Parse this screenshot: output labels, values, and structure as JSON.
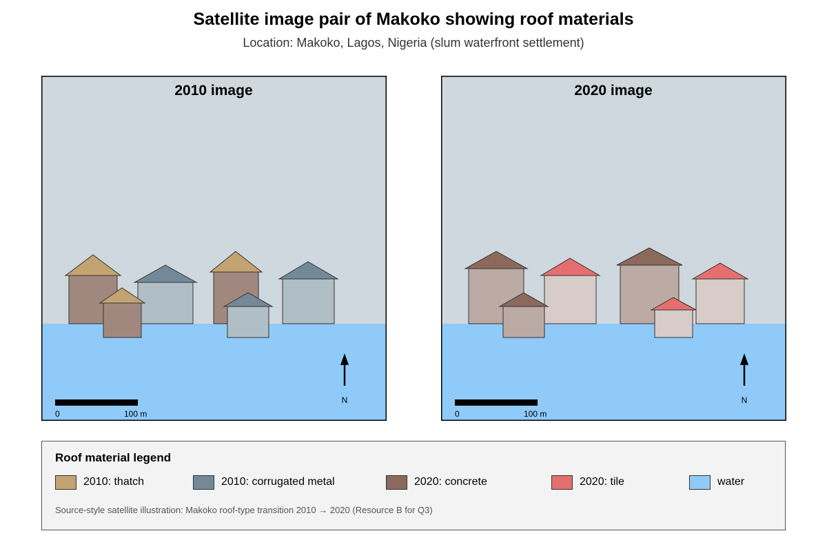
{
  "title": "Satellite image pair of Makoko showing roof materials",
  "subtitle": "Location: Makoko, Lagos, Nigeria (slum waterfront settlement)",
  "panels": [
    {
      "label": "2010 image",
      "scale_start": "0",
      "scale_end": "100 m",
      "north": "N"
    },
    {
      "label": "2020 image",
      "scale_start": "0",
      "scale_end": "100 m",
      "north": "N"
    }
  ],
  "legend": {
    "title": "Roof material legend",
    "items": [
      {
        "label": "2010: thatch",
        "color": "#c4a372"
      },
      {
        "label": "2010: corrugated metal",
        "color": "#738997"
      },
      {
        "label": "2020: concrete",
        "color": "#8b6a5d"
      },
      {
        "label": "2020: tile",
        "color": "#e56f6f"
      },
      {
        "label": "water",
        "color": "#90caf9"
      }
    ],
    "note": "Source-style satellite illustration: Makoko roof-type transition 2010 → 2020 (Resource B for Q3)"
  },
  "colors": {
    "sky": "#cfd8de",
    "water": "#90caf9",
    "wall_2010_thatch": "#a1887f",
    "wall_2010_metal": "#b0bec5",
    "wall_2020_concrete": "#bcaaa4",
    "wall_2020_tile": "#d7ccc8"
  }
}
